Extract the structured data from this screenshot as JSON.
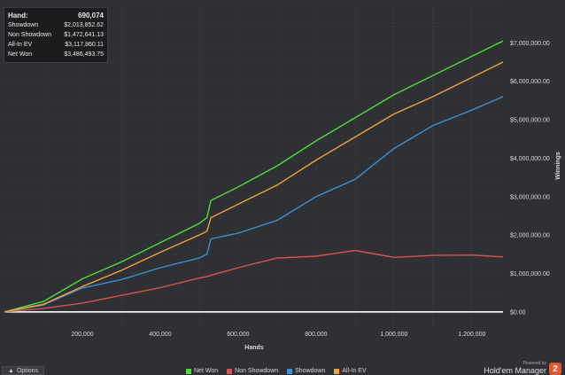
{
  "summary": {
    "rows": [
      {
        "label": "Hand:",
        "value": "690,074"
      },
      {
        "label": "Showdown",
        "value": "$2,013,852.62"
      },
      {
        "label": "Non Showdown",
        "value": "$1,472,641.13"
      },
      {
        "label": "All-In EV",
        "value": "$3,117,860.11"
      },
      {
        "label": "Net Won",
        "value": "$3,486,493.75"
      }
    ]
  },
  "footer": {
    "options_label": "Options",
    "powered_by": "Powered by",
    "brand": "Hold'em Manager",
    "brand_badge": "2"
  },
  "colors": {
    "background": "#2e3033",
    "grid": "#3f4246",
    "axis_text": "#d8d8d8",
    "zero_line": "#ffffff"
  },
  "chart_data": {
    "type": "line",
    "xlabel": "Hands",
    "ylabel": "Winnings",
    "xlim": [
      0,
      1280000
    ],
    "ylim": [
      -350000,
      8000000
    ],
    "x_ticks": [
      200000,
      400000,
      600000,
      800000,
      1000000,
      1200000
    ],
    "x_tick_labels": [
      "200,000",
      "400,000",
      "600,000",
      "800,000",
      "1,000,000",
      "1,200,000"
    ],
    "y_ticks": [
      0,
      1000000,
      2000000,
      3000000,
      4000000,
      5000000,
      6000000,
      7000000
    ],
    "y_tick_labels": [
      "$0.00",
      "$1,000,000.00",
      "$2,000,000.00",
      "$3,000,000.00",
      "$4,000,000.00",
      "$5,000,000.00",
      "$6,000,000.00",
      "$7,000,000.00"
    ],
    "grid": true,
    "legend_position": "bottom",
    "x": [
      0,
      100000,
      200000,
      300000,
      400000,
      500000,
      520000,
      530000,
      600000,
      700000,
      800000,
      900000,
      1000000,
      1100000,
      1200000,
      1280000
    ],
    "series": [
      {
        "name": "Net Won",
        "color": "#4cdc3c",
        "values": [
          0,
          270000,
          860000,
          1300000,
          1800000,
          2300000,
          2450000,
          2900000,
          3250000,
          3800000,
          4450000,
          5050000,
          5650000,
          6150000,
          6650000,
          7050000
        ]
      },
      {
        "name": "Non Showdown",
        "color": "#d9534f",
        "values": [
          0,
          90000,
          230000,
          430000,
          630000,
          880000,
          920000,
          950000,
          1150000,
          1400000,
          1450000,
          1600000,
          1420000,
          1470000,
          1480000,
          1430000
        ]
      },
      {
        "name": "Showdown",
        "color": "#3a8fd6",
        "values": [
          0,
          180000,
          620000,
          840000,
          1150000,
          1400000,
          1500000,
          1900000,
          2050000,
          2380000,
          3000000,
          3450000,
          4250000,
          4850000,
          5250000,
          5600000
        ]
      },
      {
        "name": "All-In EV",
        "color": "#f0a041",
        "values": [
          0,
          200000,
          660000,
          1080000,
          1550000,
          2000000,
          2100000,
          2450000,
          2800000,
          3300000,
          3950000,
          4550000,
          5150000,
          5600000,
          6100000,
          6500000
        ]
      }
    ]
  }
}
